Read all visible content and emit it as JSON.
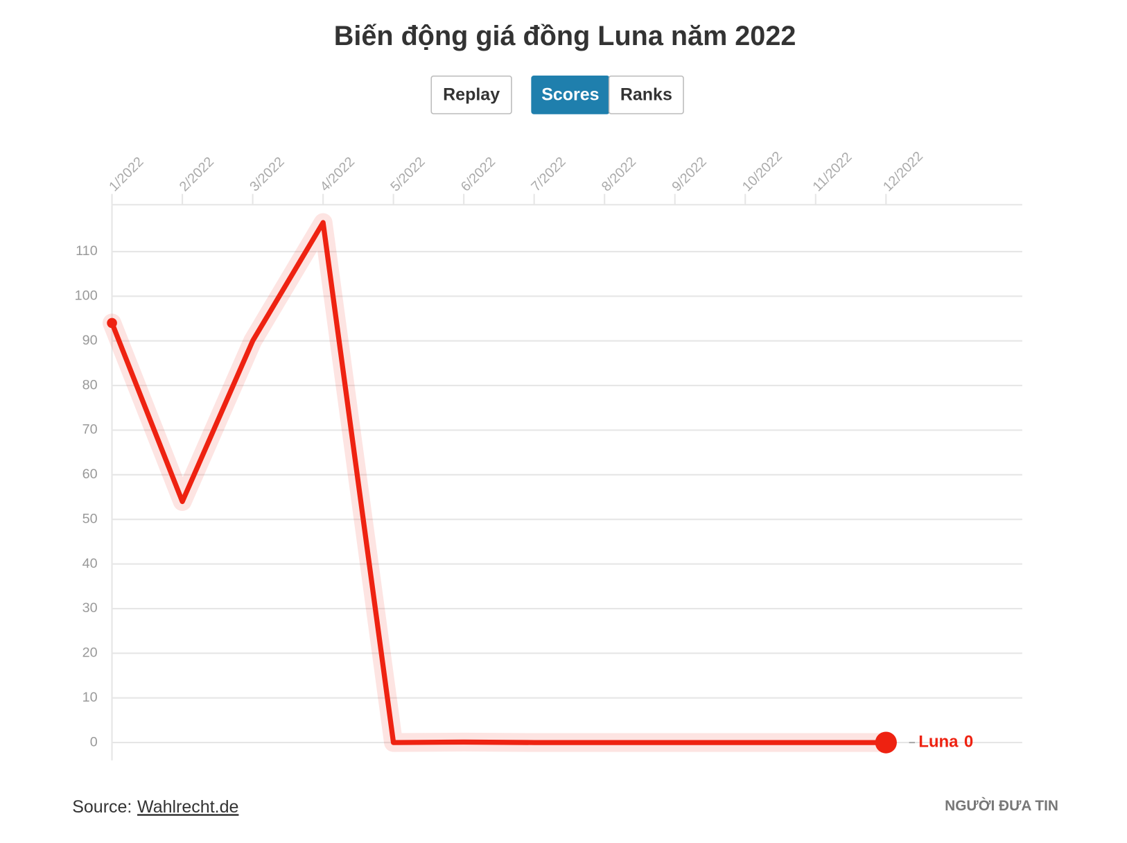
{
  "chart_data": {
    "type": "line",
    "title": "Biến động giá đồng Luna năm 2022",
    "buttons": [
      "Replay",
      "Scores",
      "Ranks"
    ],
    "active_button": "Scores",
    "categories": [
      "1/2022",
      "2/2022",
      "3/2022",
      "4/2022",
      "5/2022",
      "6/2022",
      "7/2022",
      "8/2022",
      "9/2022",
      "10/2022",
      "11/2022",
      "12/2022"
    ],
    "series": [
      {
        "name": "Luna",
        "color": "#ee2211",
        "values": [
          94,
          54,
          90,
          116.5,
          0,
          0.1,
          0,
          0,
          0,
          0,
          0,
          0
        ]
      }
    ],
    "ylim": [
      -4,
      120.5
    ],
    "yticks": [
      0,
      10,
      20,
      30,
      40,
      50,
      60,
      70,
      80,
      90,
      100,
      110
    ],
    "grid": true,
    "source_label": "Source:",
    "source_link": "Wahlrecht.de",
    "logo": "NGƯỜI ĐƯA TIN"
  }
}
